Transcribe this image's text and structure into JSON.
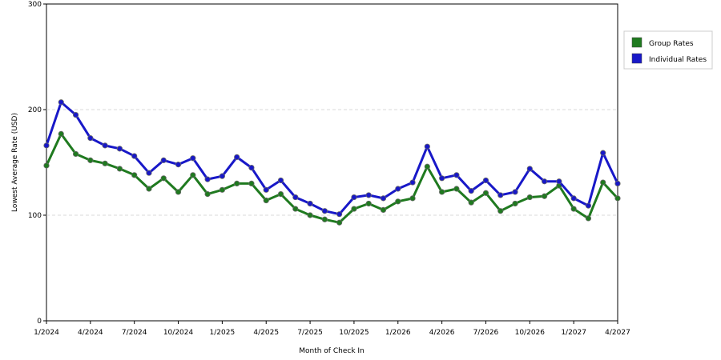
{
  "chart_data": {
    "type": "line",
    "xlabel": "Month of Check In",
    "ylabel": "Lowest Average Rate (USD)",
    "ylim": [
      0,
      300
    ],
    "yticks": [
      0,
      100,
      200,
      300
    ],
    "grid": "horizontal dashed at 100 and 200",
    "legend_position": "right",
    "x_tick_labels": [
      "1/2024",
      "4/2024",
      "7/2024",
      "10/2024",
      "1/2025",
      "4/2025",
      "7/2025",
      "10/2025",
      "1/2026",
      "4/2026",
      "7/2026",
      "10/2026",
      "1/2027",
      "4/2027"
    ],
    "x": [
      "1/2024",
      "2/2024",
      "3/2024",
      "4/2024",
      "5/2024",
      "6/2024",
      "7/2024",
      "8/2024",
      "9/2024",
      "10/2024",
      "11/2024",
      "12/2024",
      "1/2025",
      "2/2025",
      "3/2025",
      "4/2025",
      "5/2025",
      "6/2025",
      "7/2025",
      "8/2025",
      "9/2025",
      "10/2025",
      "11/2025",
      "12/2025",
      "1/2026",
      "2/2026",
      "3/2026",
      "4/2026",
      "5/2026",
      "6/2026",
      "7/2026",
      "8/2026",
      "9/2026",
      "10/2026",
      "11/2026",
      "12/2026",
      "1/2027",
      "2/2027",
      "3/2027",
      "4/2027"
    ],
    "series": [
      {
        "name": "Group Rates",
        "color": "#1f7a1f",
        "values": [
          147,
          177,
          158,
          152,
          149,
          144,
          138,
          125,
          135,
          122,
          138,
          120,
          124,
          130,
          130,
          114,
          120,
          106,
          100,
          96,
          93,
          106,
          111,
          105,
          113,
          116,
          146,
          122,
          125,
          112,
          121,
          104,
          111,
          117,
          118,
          128,
          106,
          97,
          131,
          116
        ]
      },
      {
        "name": "Individual Rates",
        "color": "#1818c8",
        "values": [
          166,
          207,
          195,
          173,
          166,
          163,
          156,
          140,
          152,
          148,
          154,
          134,
          137,
          155,
          145,
          124,
          133,
          117,
          111,
          104,
          101,
          117,
          119,
          116,
          125,
          131,
          165,
          135,
          138,
          123,
          133,
          119,
          122,
          144,
          132,
          132,
          116,
          109,
          159,
          130
        ]
      }
    ]
  }
}
